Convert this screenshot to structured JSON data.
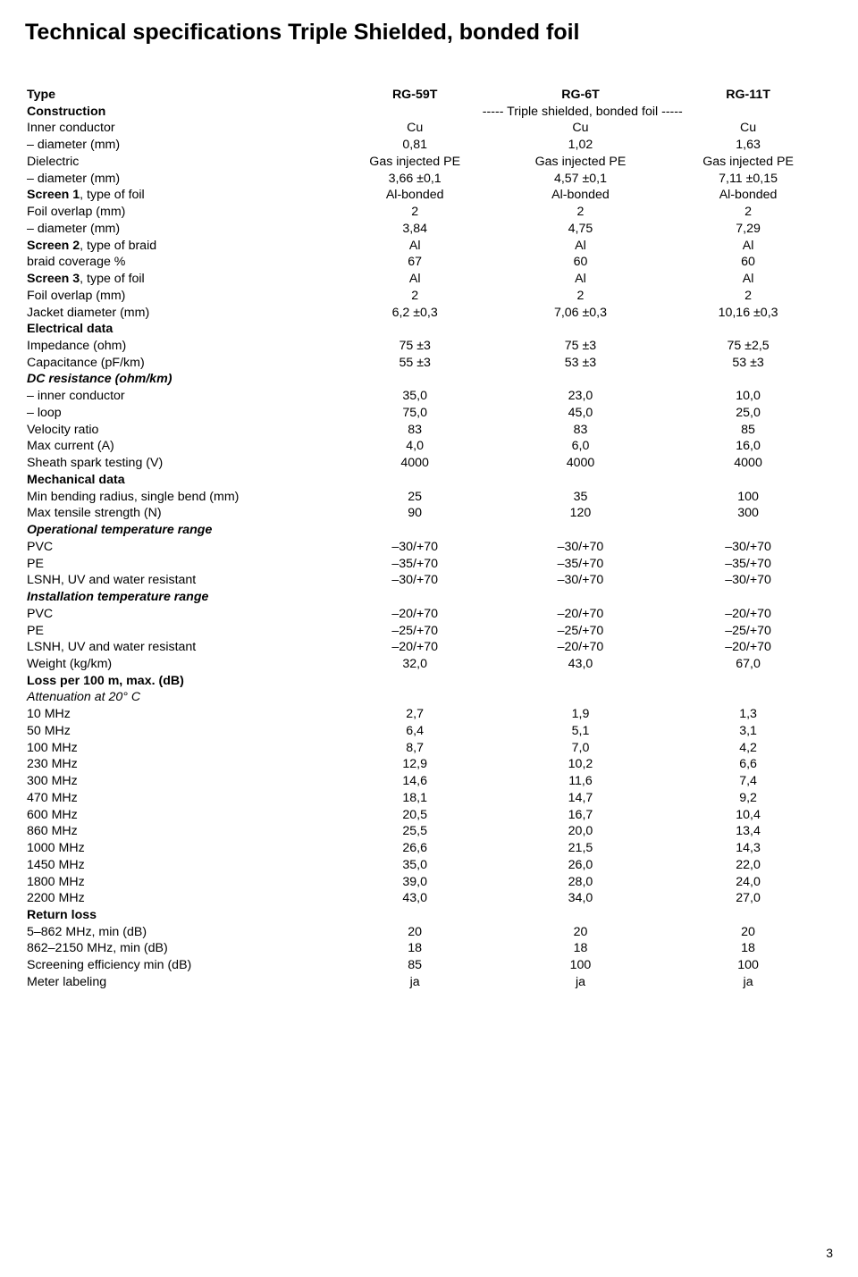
{
  "title": "Technical specifications Triple Shielded, bonded foil",
  "page_number": "3",
  "cols": {
    "h1": "RG-59T",
    "h2": "RG-6T",
    "h3": "RG-11T"
  },
  "rows": [
    {
      "label": "Type",
      "style": "b",
      "c": [
        "RG-59T",
        "RG-6T",
        "RG-11T"
      ],
      "cstyle": "b"
    },
    {
      "label": "Construction",
      "style": "b",
      "span": "----- Triple shielded, bonded foil -----"
    },
    {
      "label": "Inner conductor",
      "c": [
        "Cu",
        "Cu",
        "Cu"
      ]
    },
    {
      "label": "– diameter (mm)",
      "c": [
        "0,81",
        "1,02",
        "1,63"
      ]
    },
    {
      "label": "Dielectric",
      "c": [
        "Gas injected PE",
        "Gas injected PE",
        "Gas injected PE"
      ]
    },
    {
      "label": "– diameter (mm)",
      "c": [
        "3,66 ±0,1",
        "4,57 ±0,1",
        "7,11 ±0,15"
      ]
    },
    {
      "label": "Screen 1, type of foil",
      "lbold": "Screen 1",
      "lrest": ", type of foil",
      "c": [
        "Al-bonded",
        "Al-bonded",
        "Al-bonded"
      ]
    },
    {
      "label": "Foil overlap (mm)",
      "c": [
        "2",
        "2",
        "2"
      ]
    },
    {
      "label": "– diameter (mm)",
      "c": [
        "3,84",
        "4,75",
        "7,29"
      ]
    },
    {
      "label": "Screen 2, type of braid",
      "lbold": "Screen 2",
      "lrest": ", type of braid",
      "c": [
        "Al",
        "Al",
        "Al"
      ]
    },
    {
      "label": "braid coverage %",
      "c": [
        "67",
        "60",
        "60"
      ]
    },
    {
      "label": "Screen 3, type of foil",
      "lbold": "Screen 3",
      "lrest": ", type of foil",
      "c": [
        "Al",
        "Al",
        "Al"
      ]
    },
    {
      "label": "Foil overlap (mm)",
      "c": [
        "2",
        "2",
        "2"
      ]
    },
    {
      "label": "Jacket diameter (mm)",
      "c": [
        "6,2 ±0,3",
        "7,06 ±0,3",
        "10,16 ±0,3"
      ]
    },
    {
      "label": "Electrical data",
      "style": "b"
    },
    {
      "label": "Impedance (ohm)",
      "c": [
        "75 ±3",
        "75 ±3",
        "75 ±2,5"
      ]
    },
    {
      "label": "Capacitance (pF/km)",
      "c": [
        "55 ±3",
        "53 ±3",
        "53 ±3"
      ]
    },
    {
      "label": "DC resistance (ohm/km)",
      "style": "bi"
    },
    {
      "label": "– inner conductor",
      "c": [
        "35,0",
        "23,0",
        "10,0"
      ]
    },
    {
      "label": "– loop",
      "c": [
        "75,0",
        "45,0",
        "25,0"
      ]
    },
    {
      "label": "Velocity ratio",
      "c": [
        "83",
        "83",
        "85"
      ]
    },
    {
      "label": "Max current (A)",
      "c": [
        "4,0",
        "6,0",
        "16,0"
      ]
    },
    {
      "label": "Sheath spark testing (V)",
      "c": [
        "4000",
        "4000",
        "4000"
      ]
    },
    {
      "label": "Mechanical data",
      "style": "b"
    },
    {
      "label": "Min bending radius, single bend (mm)",
      "c": [
        "25",
        "35",
        "100"
      ]
    },
    {
      "label": "Max tensile strength (N)",
      "c": [
        "90",
        "120",
        "300"
      ]
    },
    {
      "label": "Operational temperature range",
      "style": "bi"
    },
    {
      "label": "PVC",
      "c": [
        "–30/+70",
        "–30/+70",
        "–30/+70"
      ]
    },
    {
      "label": "PE",
      "c": [
        "–35/+70",
        "–35/+70",
        "–35/+70"
      ]
    },
    {
      "label": "LSNH, UV and water resistant",
      "c": [
        "–30/+70",
        "–30/+70",
        "–30/+70"
      ]
    },
    {
      "label": "Installation temperature range",
      "style": "bi"
    },
    {
      "label": "PVC",
      "c": [
        "–20/+70",
        "–20/+70",
        "–20/+70"
      ]
    },
    {
      "label": "PE",
      "c": [
        "–25/+70",
        "–25/+70",
        "–25/+70"
      ]
    },
    {
      "label": "LSNH, UV and water resistant",
      "c": [
        "–20/+70",
        "–20/+70",
        "–20/+70"
      ]
    },
    {
      "label": "Weight (kg/km)",
      "c": [
        "32,0",
        "43,0",
        "67,0"
      ]
    },
    {
      "label": "Loss per 100 m, max. (dB)",
      "style": "b"
    },
    {
      "label": "Attenuation at 20° C",
      "style": "i"
    },
    {
      "label": "10 MHz",
      "c": [
        "2,7",
        "1,9",
        "1,3"
      ]
    },
    {
      "label": "50 MHz",
      "c": [
        "6,4",
        "5,1",
        "3,1"
      ]
    },
    {
      "label": "100 MHz",
      "c": [
        "8,7",
        "7,0",
        "4,2"
      ]
    },
    {
      "label": "230 MHz",
      "c": [
        "12,9",
        "10,2",
        "6,6"
      ]
    },
    {
      "label": "300 MHz",
      "c": [
        "14,6",
        "11,6",
        "7,4"
      ]
    },
    {
      "label": "470 MHz",
      "c": [
        "18,1",
        "14,7",
        "9,2"
      ]
    },
    {
      "label": "600 MHz",
      "c": [
        "20,5",
        "16,7",
        "10,4"
      ]
    },
    {
      "label": "860 MHz",
      "c": [
        "25,5",
        "20,0",
        "13,4"
      ]
    },
    {
      "label": "1000 MHz",
      "c": [
        "26,6",
        "21,5",
        "14,3"
      ]
    },
    {
      "label": "1450 MHz",
      "c": [
        "35,0",
        "26,0",
        "22,0"
      ]
    },
    {
      "label": "1800 MHz",
      "c": [
        "39,0",
        "28,0",
        "24,0"
      ]
    },
    {
      "label": "2200 MHz",
      "c": [
        "43,0",
        "34,0",
        "27,0"
      ]
    },
    {
      "label": "Return loss",
      "style": "b"
    },
    {
      "label": "5–862 MHz, min (dB)",
      "c": [
        "20",
        "20",
        "20"
      ]
    },
    {
      "label": "862–2150 MHz, min (dB)",
      "c": [
        "18",
        "18",
        "18"
      ]
    },
    {
      "label": "Screening efficiency min (dB)",
      "c": [
        "85",
        "100",
        "100"
      ]
    },
    {
      "label": "Meter labeling",
      "c": [
        "ja",
        "ja",
        "ja"
      ]
    }
  ]
}
